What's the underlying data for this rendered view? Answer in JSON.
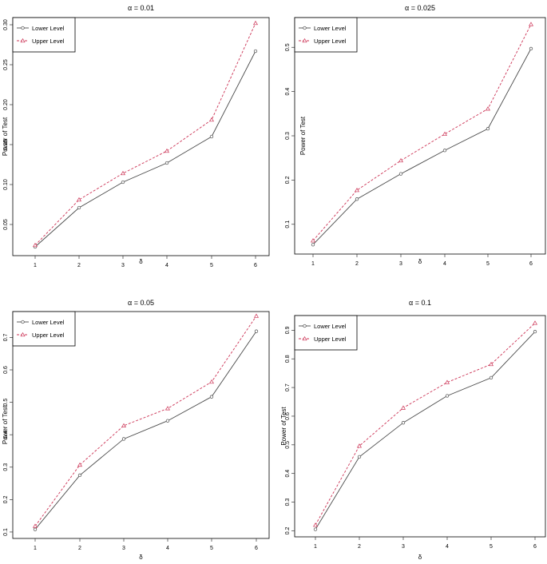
{
  "colors": {
    "lower": "#4a4a4a",
    "upper": "#cc3355",
    "axis": "#333333",
    "box": "#000000"
  },
  "chart_data": [
    {
      "type": "line",
      "title": "α = 0.01",
      "xlabel": "δ",
      "ylabel": "Power of Test",
      "x": [
        1,
        2,
        3,
        4,
        5,
        6
      ],
      "xticks": [
        "1",
        "2",
        "3",
        "4",
        "5",
        "6"
      ],
      "yticks": [
        0.05,
        0.1,
        0.15,
        0.2,
        0.25,
        0.3
      ],
      "ytick_labels": [
        "0.05",
        "0.10",
        "0.15",
        "0.20",
        "0.25",
        "0.30"
      ],
      "ylim": [
        0.015,
        0.305
      ],
      "legend": "top-left",
      "series": [
        {
          "name": "Lower Level",
          "marker": "circle",
          "style": "solid",
          "values": [
            0.022,
            0.071,
            0.103,
            0.127,
            0.16,
            0.267
          ]
        },
        {
          "name": "Upper Level",
          "marker": "triangle",
          "style": "dashed",
          "values": [
            0.024,
            0.081,
            0.114,
            0.142,
            0.181,
            0.302
          ]
        }
      ]
    },
    {
      "type": "line",
      "title": "α = 0.025",
      "xlabel": "δ",
      "ylabel": "Power of Test",
      "x": [
        1,
        2,
        3,
        4,
        5,
        6
      ],
      "xticks": [
        "1",
        "2",
        "3",
        "4",
        "5",
        "6"
      ],
      "yticks": [
        0.1,
        0.2,
        0.3,
        0.4,
        0.5
      ],
      "ytick_labels": [
        "0.1",
        "0.2",
        "0.3",
        "0.4",
        "0.5"
      ],
      "ylim": [
        0.04,
        0.56
      ],
      "legend": "top-left",
      "series": [
        {
          "name": "Lower Level",
          "marker": "circle",
          "style": "solid",
          "values": [
            0.054,
            0.157,
            0.214,
            0.267,
            0.316,
            0.497
          ]
        },
        {
          "name": "Upper Level",
          "marker": "triangle",
          "style": "dashed",
          "values": [
            0.063,
            0.177,
            0.244,
            0.304,
            0.361,
            0.552
          ]
        }
      ]
    },
    {
      "type": "line",
      "title": "α = 0.05",
      "xlabel": "δ",
      "ylabel": "Power of Test",
      "x": [
        1,
        2,
        3,
        4,
        5,
        6
      ],
      "xticks": [
        "1",
        "2",
        "3",
        "4",
        "5",
        "6"
      ],
      "yticks": [
        0.1,
        0.2,
        0.3,
        0.4,
        0.5,
        0.6,
        0.7
      ],
      "ytick_labels": [
        "0.1",
        "0.2",
        "0.3",
        "0.4",
        "0.5",
        "0.6",
        "0.7"
      ],
      "ylim": [
        0.09,
        0.77
      ],
      "legend": "top-left",
      "series": [
        {
          "name": "Lower Level",
          "marker": "circle",
          "style": "solid",
          "values": [
            0.108,
            0.275,
            0.387,
            0.443,
            0.517,
            0.719
          ]
        },
        {
          "name": "Upper Level",
          "marker": "triangle",
          "style": "dashed",
          "values": [
            0.118,
            0.307,
            0.428,
            0.481,
            0.563,
            0.766
          ]
        }
      ]
    },
    {
      "type": "line",
      "title": "α = 0.1",
      "xlabel": "δ",
      "ylabel": "Power of Test",
      "x": [
        1,
        2,
        3,
        4,
        5,
        6
      ],
      "xticks": [
        "1",
        "2",
        "3",
        "4",
        "5",
        "6"
      ],
      "yticks": [
        0.2,
        0.3,
        0.4,
        0.5,
        0.6,
        0.7,
        0.8,
        0.9
      ],
      "ytick_labels": [
        "0.2",
        "0.3",
        "0.4",
        "0.5",
        "0.6",
        "0.7",
        "0.8",
        "0.9"
      ],
      "ylim": [
        0.19,
        0.94
      ],
      "legend": "top-left",
      "series": [
        {
          "name": "Lower Level",
          "marker": "circle",
          "style": "solid",
          "values": [
            0.205,
            0.458,
            0.577,
            0.671,
            0.734,
            0.895
          ]
        },
        {
          "name": "Upper Level",
          "marker": "triangle",
          "style": "dashed",
          "values": [
            0.22,
            0.496,
            0.629,
            0.718,
            0.781,
            0.925
          ]
        }
      ]
    }
  ]
}
